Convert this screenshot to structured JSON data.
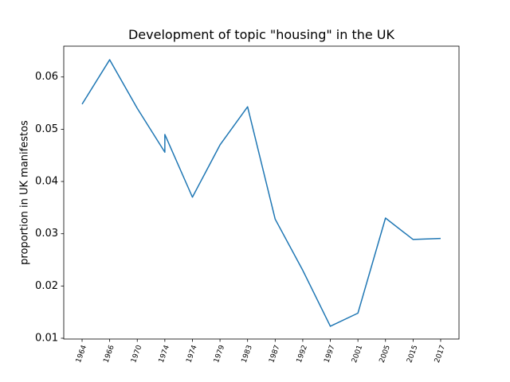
{
  "chart_data": {
    "type": "line",
    "title": "Development of topic \"housing\" in the UK",
    "ylabel": "proportion in UK manifestos",
    "x": [
      0,
      1,
      2,
      3,
      3,
      4,
      5,
      6,
      7,
      8,
      9,
      10,
      11,
      12,
      13
    ],
    "series": [
      {
        "color": "#1f77b4",
        "values": [
          0.0548,
          0.0633,
          0.054,
          0.0456,
          0.049,
          0.037,
          0.047,
          0.0543,
          0.0328,
          0.023,
          0.0123,
          0.0148,
          0.033,
          0.0289,
          0.0291
        ]
      }
    ],
    "xlim": [
      -0.665,
      13.665
    ],
    "xticks": [
      {
        "value": 0,
        "label": "1964"
      },
      {
        "value": 1,
        "label": "1966"
      },
      {
        "value": 2,
        "label": "1970"
      },
      {
        "value": 3,
        "label": "1974"
      },
      {
        "value": 4,
        "label": "1974"
      },
      {
        "value": 5,
        "label": "1979"
      },
      {
        "value": 6,
        "label": "1983"
      },
      {
        "value": 7,
        "label": "1987"
      },
      {
        "value": 8,
        "label": "1992"
      },
      {
        "value": 9,
        "label": "1997"
      },
      {
        "value": 10,
        "label": "2001"
      },
      {
        "value": 11,
        "label": "2005"
      },
      {
        "value": 12,
        "label": "2015"
      },
      {
        "value": 13,
        "label": "2017"
      }
    ],
    "ylim": [
      0.00985,
      0.0659
    ],
    "yticks": [
      0.01,
      0.02,
      0.03,
      0.04,
      0.05,
      0.06
    ],
    "grid": false
  }
}
